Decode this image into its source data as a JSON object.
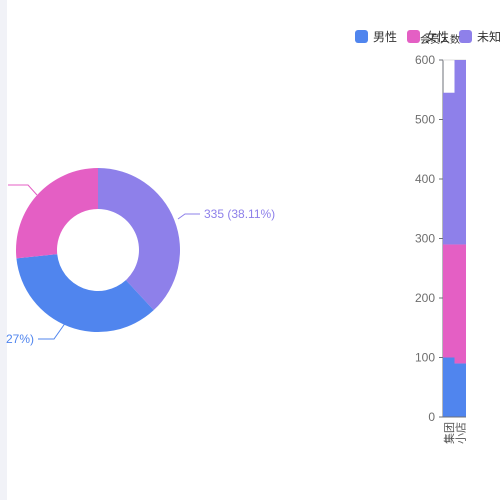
{
  "colors": {
    "male": "#5085ee",
    "female": "#e45fc4",
    "unknown": "#8e80ea"
  },
  "legend": {
    "items": [
      {
        "label": "男性",
        "color": "#5085ee"
      },
      {
        "label": "女性",
        "color": "#e45fc4"
      },
      {
        "label": "未知",
        "color": "#8e80ea"
      }
    ],
    "overlap_text": "会员人数"
  },
  "chart_data": [
    {
      "type": "pie",
      "slices": [
        {
          "series": "未知",
          "value": 335,
          "percent": 38.11,
          "color": "#8e80ea"
        },
        {
          "series": "男性",
          "value": 310,
          "percent": 35.27,
          "color": "#5085ee"
        },
        {
          "series": "女性",
          "value": 234,
          "percent": 26.62,
          "color": "#e45fc4"
        }
      ],
      "labels": {
        "unknown": "335 (38.11%)",
        "male": "27%)"
      }
    },
    {
      "type": "bar",
      "stacked": true,
      "categories": [
        "集团",
        "小店"
      ],
      "series": [
        {
          "name": "男性",
          "values": [
            100,
            90
          ],
          "color": "#5085ee"
        },
        {
          "name": "女性",
          "values": [
            190,
            200
          ],
          "color": "#e45fc4"
        },
        {
          "name": "未知",
          "values": [
            255,
            310
          ],
          "color": "#8e80ea"
        }
      ],
      "ylim": [
        0,
        600
      ],
      "yticks": [
        "0",
        "100",
        "200",
        "300",
        "400",
        "500",
        "600"
      ]
    }
  ]
}
